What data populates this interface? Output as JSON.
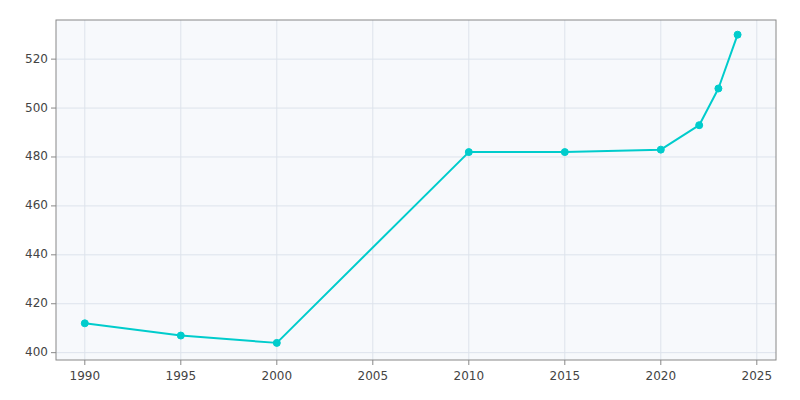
{
  "chart_data": {
    "type": "line",
    "x": [
      1990,
      1995,
      2000,
      2010,
      2015,
      2020,
      2022,
      2023,
      2024
    ],
    "values": [
      412,
      407,
      404,
      482,
      482,
      483,
      493,
      508,
      530
    ],
    "color": "#00CCCC",
    "marker": "circle",
    "xlim": [
      1988.5,
      2026
    ],
    "ylim": [
      397,
      536
    ],
    "xticks": [
      1990,
      1995,
      2000,
      2005,
      2010,
      2015,
      2020,
      2025
    ],
    "yticks": [
      400,
      420,
      440,
      460,
      480,
      500,
      520
    ],
    "grid": true
  }
}
